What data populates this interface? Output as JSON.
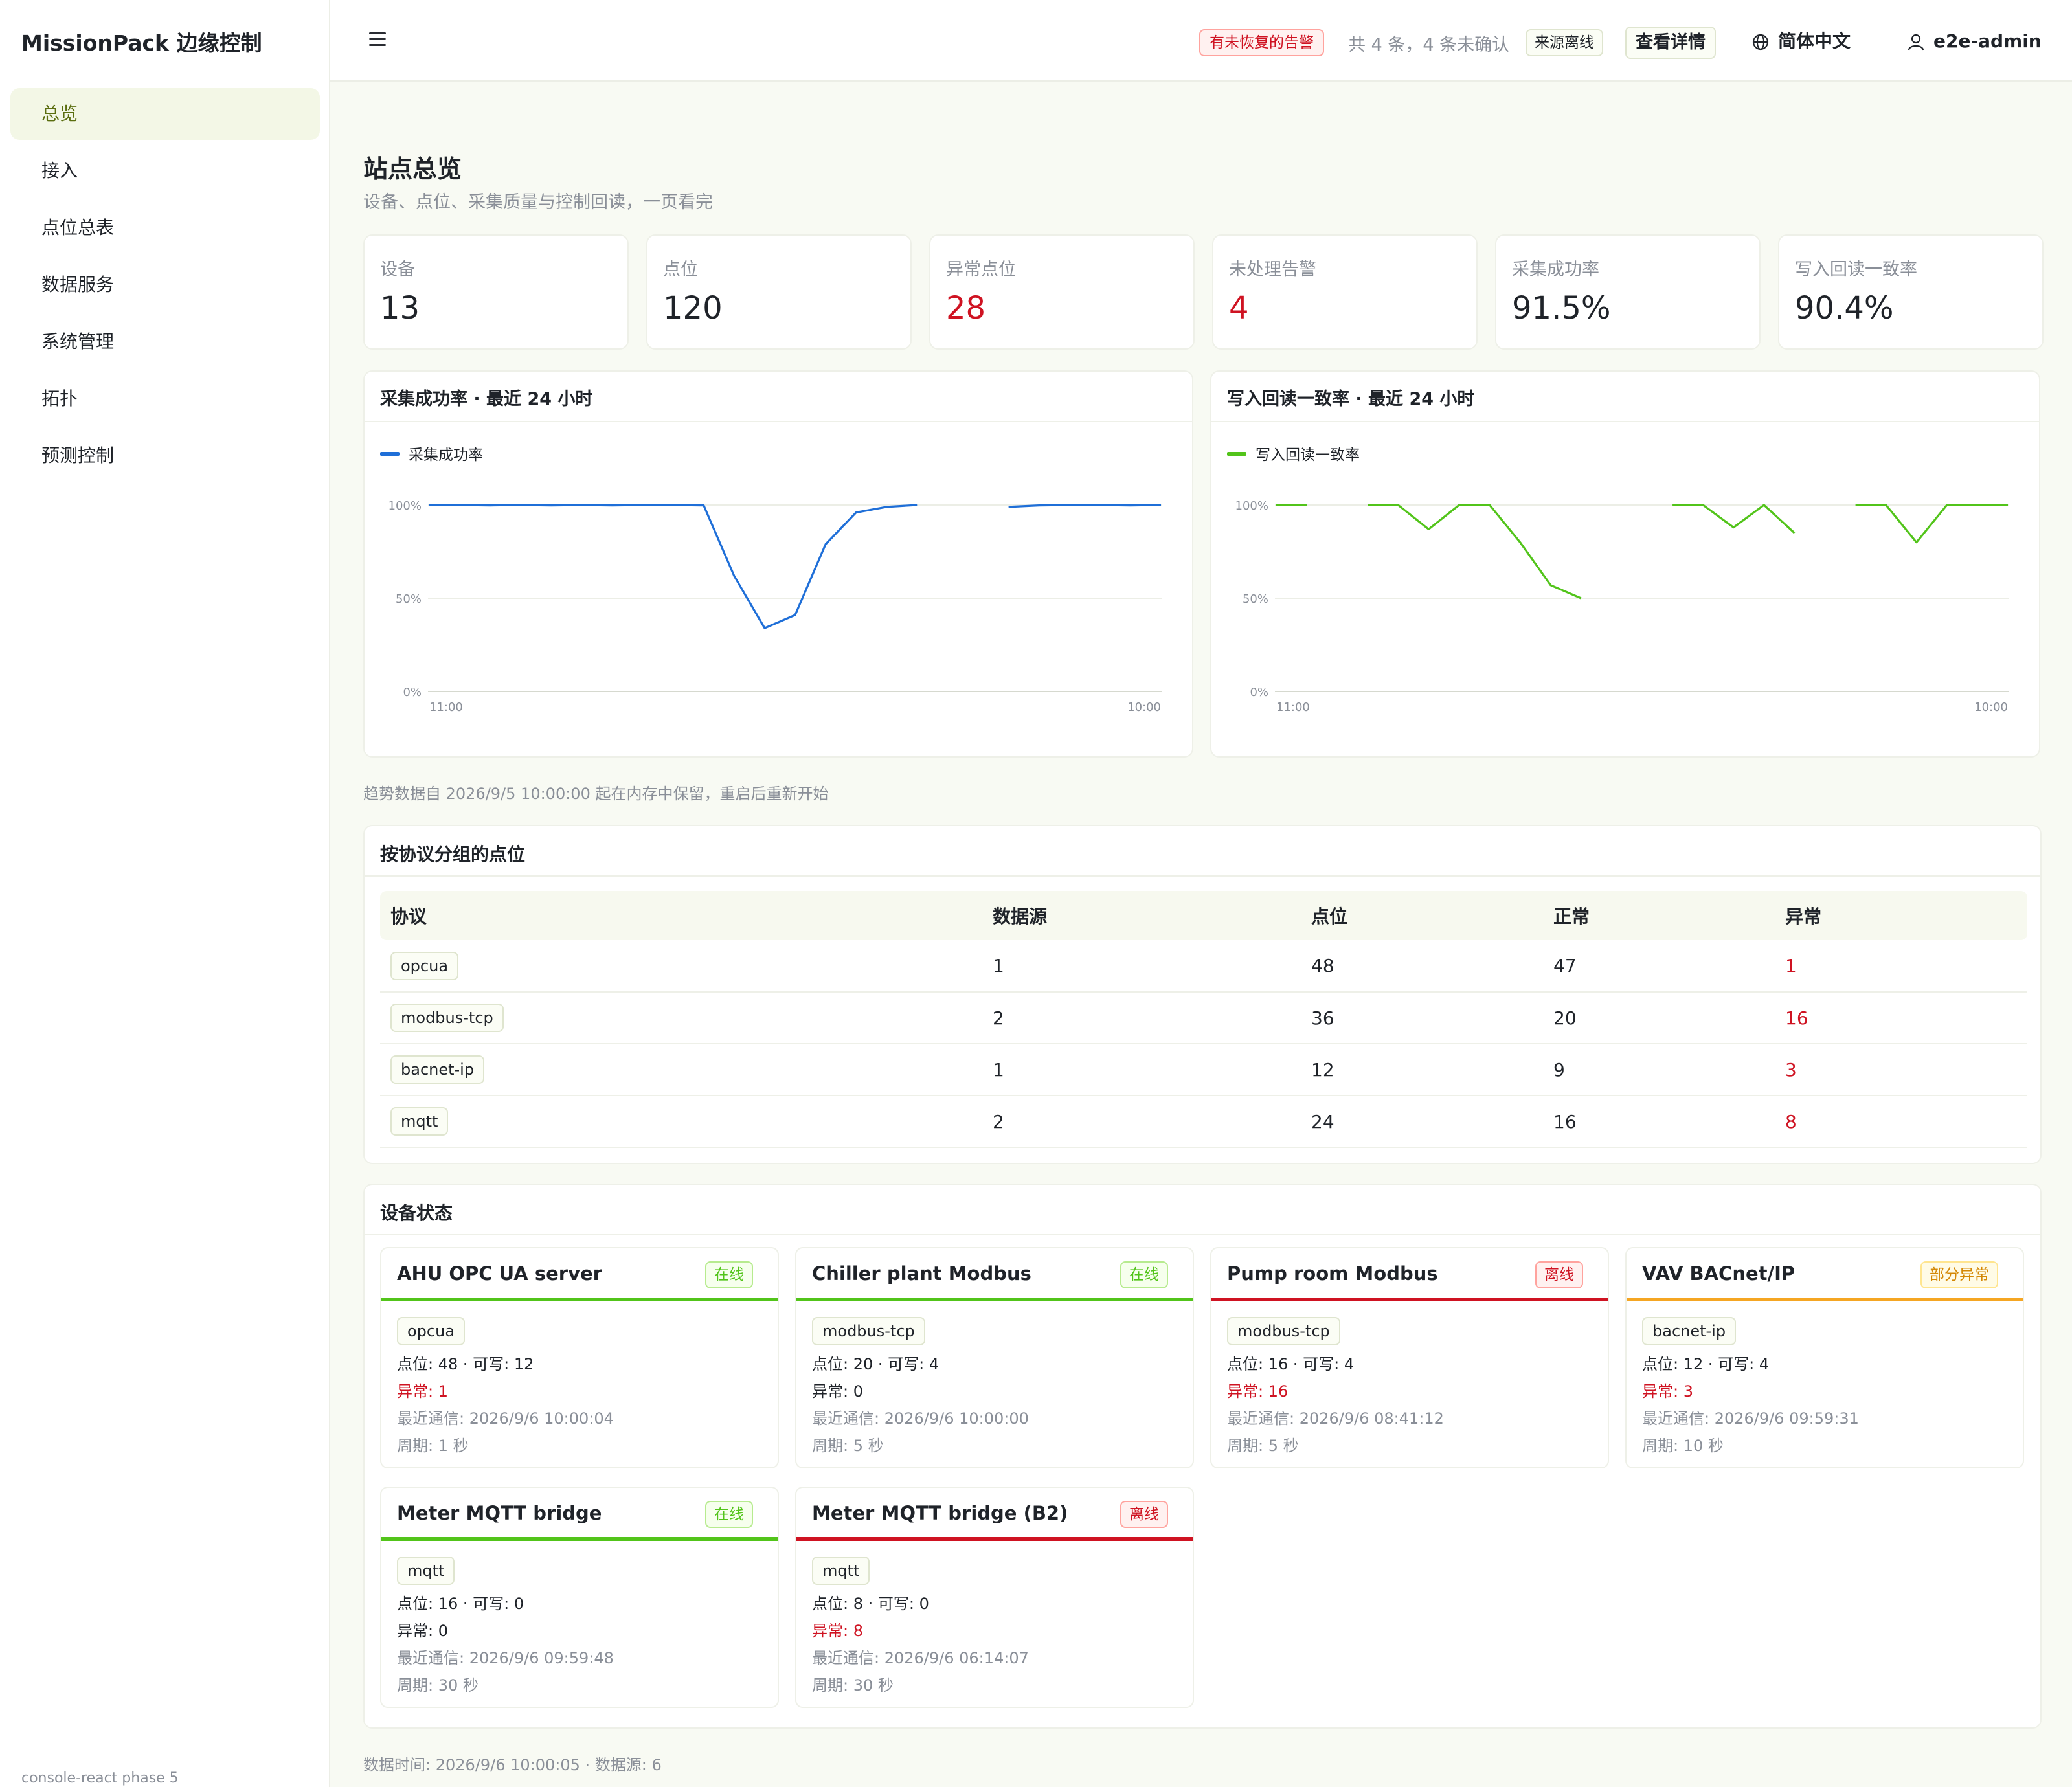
{
  "app": {
    "brand": "MissionPack 边缘控制",
    "footer": "console-react phase 5"
  },
  "menu": [
    {
      "label": "总览",
      "active": true
    },
    {
      "label": "接入"
    },
    {
      "label": "点位总表"
    },
    {
      "label": "数据服务"
    },
    {
      "label": "系统管理"
    },
    {
      "label": "拓扑"
    },
    {
      "label": "预测控制"
    }
  ],
  "header": {
    "alert_tag": "有未恢复的告警",
    "alert_summary": "共 4 条，4 条未确认",
    "source_tag": "来源离线",
    "detail_button": "查看详情",
    "language": "简体中文",
    "user": "e2e-admin"
  },
  "page": {
    "title": "站点总览",
    "subtitle": "设备、点位、采集质量与控制回读，一页看完"
  },
  "kpis": [
    {
      "label": "设备",
      "value": "13"
    },
    {
      "label": "点位",
      "value": "120"
    },
    {
      "label": "异常点位",
      "value": "28",
      "alert": true
    },
    {
      "label": "未处理告警",
      "value": "4",
      "alert": true
    },
    {
      "label": "采集成功率",
      "value": "91.5%"
    },
    {
      "label": "写入回读一致率",
      "value": "90.4%"
    }
  ],
  "chart_data": [
    {
      "type": "line",
      "title": "采集成功率 · 最近 24 小时",
      "series": [
        {
          "name": "采集成功率",
          "color": "#1f6fd8",
          "values": [
            100,
            100,
            99.8,
            100,
            99.8,
            100,
            99.8,
            100,
            100,
            99.8,
            62,
            34,
            41,
            79,
            96,
            99,
            100,
            null,
            null,
            99,
            99.8,
            100,
            100,
            99.8,
            100
          ]
        }
      ],
      "x_labels": [
        "11:00",
        "10:00"
      ],
      "y_ticks": [
        "0%",
        "50%",
        "100%"
      ],
      "ylim": [
        0,
        100
      ],
      "legend": "top-left",
      "grid": true
    },
    {
      "type": "line",
      "title": "写入回读一致率 · 最近 24 小时",
      "series": [
        {
          "name": "写入回读一致率",
          "color": "#52c41a",
          "values": [
            100,
            100,
            null,
            100,
            100,
            87,
            100,
            100,
            80,
            57,
            50,
            null,
            null,
            100,
            100,
            88,
            100,
            85,
            null,
            100,
            100,
            80,
            100,
            100,
            100
          ]
        }
      ],
      "x_labels": [
        "11:00",
        "10:00"
      ],
      "y_ticks": [
        "0%",
        "50%",
        "100%"
      ],
      "ylim": [
        0,
        100
      ],
      "legend": "top-left",
      "grid": true
    }
  ],
  "trend_note": "趋势数据自 2026/9/5 10:00:00 起在内存中保留，重启后重新开始",
  "protocols": {
    "title": "按协议分组的点位",
    "columns": [
      "协议",
      "数据源",
      "点位",
      "正常",
      "异常"
    ],
    "rows": [
      {
        "protocol": "opcua",
        "sources": "1",
        "points": "48",
        "normal": "47",
        "abnormal": "1"
      },
      {
        "protocol": "modbus-tcp",
        "sources": "2",
        "points": "36",
        "normal": "20",
        "abnormal": "16"
      },
      {
        "protocol": "bacnet-ip",
        "sources": "1",
        "points": "12",
        "normal": "9",
        "abnormal": "3"
      },
      {
        "protocol": "mqtt",
        "sources": "2",
        "points": "24",
        "normal": "16",
        "abnormal": "8"
      }
    ]
  },
  "devices": {
    "title": "设备状态",
    "items": [
      {
        "name": "AHU OPC UA server",
        "status": "在线",
        "kind": "online",
        "protocol": "opcua",
        "points": "点位: 48 · 可写: 12",
        "abnormal": "异常: 1",
        "abnormal_alert": true,
        "last": "最近通信: 2026/9/6 10:00:04",
        "period": "周期: 1 秒"
      },
      {
        "name": "Chiller plant Modbus",
        "status": "在线",
        "kind": "online",
        "protocol": "modbus-tcp",
        "points": "点位: 20 · 可写: 4",
        "abnormal": "异常: 0",
        "abnormal_alert": false,
        "last": "最近通信: 2026/9/6 10:00:00",
        "period": "周期: 5 秒"
      },
      {
        "name": "Pump room Modbus",
        "status": "离线",
        "kind": "offline",
        "protocol": "modbus-tcp",
        "points": "点位: 16 · 可写: 4",
        "abnormal": "异常: 16",
        "abnormal_alert": true,
        "last": "最近通信: 2026/9/6 08:41:12",
        "period": "周期: 5 秒"
      },
      {
        "name": "VAV BACnet/IP",
        "status": "部分异常",
        "kind": "partial",
        "protocol": "bacnet-ip",
        "points": "点位: 12 · 可写: 4",
        "abnormal": "异常: 3",
        "abnormal_alert": true,
        "last": "最近通信: 2026/9/6 09:59:31",
        "period": "周期: 10 秒"
      },
      {
        "name": "Meter MQTT bridge",
        "status": "在线",
        "kind": "online",
        "protocol": "mqtt",
        "points": "点位: 16 · 可写: 0",
        "abnormal": "异常: 0",
        "abnormal_alert": false,
        "last": "最近通信: 2026/9/6 09:59:48",
        "period": "周期: 30 秒"
      },
      {
        "name": "Meter MQTT bridge (B2)",
        "status": "离线",
        "kind": "offline",
        "protocol": "mqtt",
        "points": "点位: 8 · 可写: 0",
        "abnormal": "异常: 8",
        "abnormal_alert": true,
        "last": "最近通信: 2026/9/6 06:14:07",
        "period": "周期: 30 秒"
      }
    ]
  },
  "footer_note": "数据时间: 2026/9/6 10:00:05 · 数据源: 6"
}
